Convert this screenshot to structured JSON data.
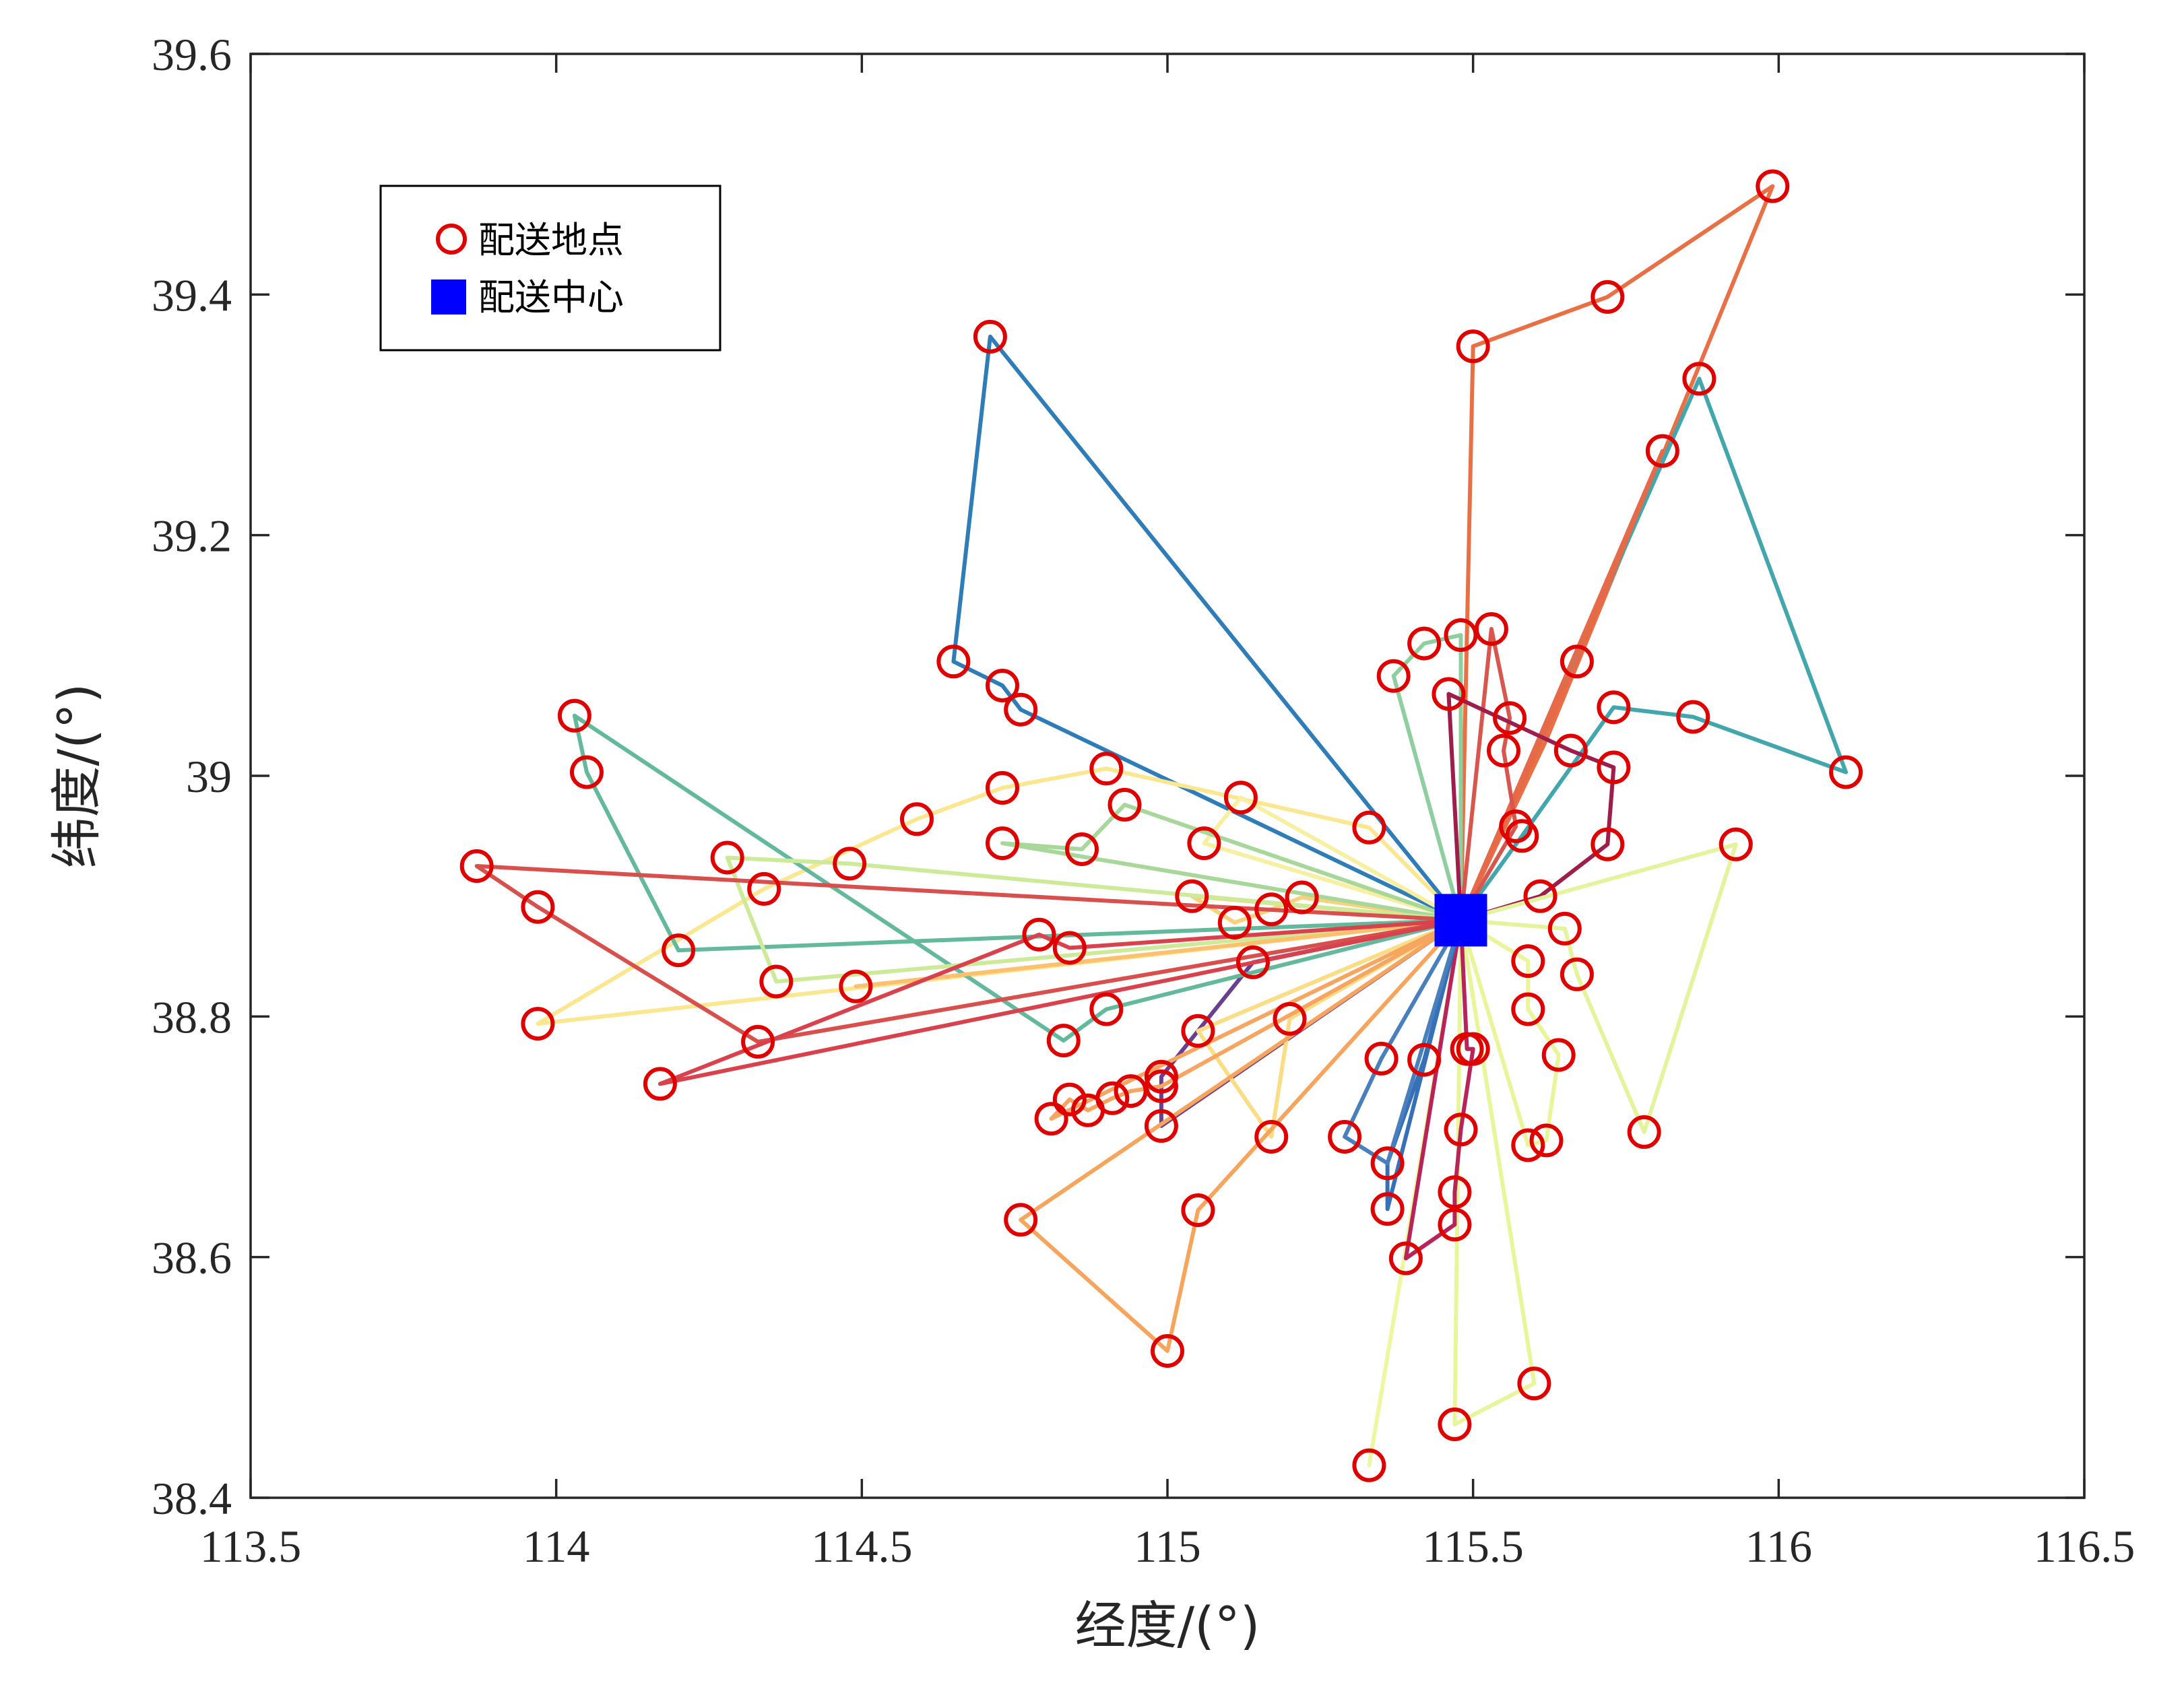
{
  "chart_data": {
    "type": "scatter",
    "xlabel": "经度/(°)",
    "ylabel": "纬度/(°)",
    "xlim": [
      113.5,
      116.5
    ],
    "ylim": [
      38.4,
      39.6
    ],
    "xticks": [
      "113.5",
      "114",
      "114.5",
      "115",
      "115.5",
      "116",
      "116.5"
    ],
    "yticks": [
      "38.4",
      "38.6",
      "38.8",
      "39",
      "39.2",
      "39.4",
      "39.6"
    ],
    "grid": false,
    "legend": {
      "position": "top-left",
      "entries": [
        {
          "label": "配送地点",
          "marker": "circle",
          "color": "#e00000"
        },
        {
          "label": "配送中心",
          "marker": "square",
          "color": "#0000ff"
        }
      ]
    },
    "center": {
      "x": 115.48,
      "y": 38.88,
      "color": "#0000ff"
    },
    "points": [
      [
        114.71,
        39.365
      ],
      [
        114.65,
        39.095
      ],
      [
        114.73,
        39.075
      ],
      [
        114.76,
        39.055
      ],
      [
        115.5,
        39.357
      ],
      [
        115.72,
        39.398
      ],
      [
        115.99,
        39.49
      ],
      [
        115.87,
        39.33
      ],
      [
        115.81,
        39.27
      ],
      [
        116.11,
        39.003
      ],
      [
        115.86,
        39.049
      ],
      [
        115.73,
        39.057
      ],
      [
        115.67,
        39.095
      ],
      [
        115.53,
        39.122
      ],
      [
        115.48,
        39.117
      ],
      [
        115.42,
        39.11
      ],
      [
        115.37,
        39.083
      ],
      [
        115.46,
        39.068
      ],
      [
        115.56,
        39.048
      ],
      [
        115.55,
        39.021
      ],
      [
        115.66,
        39.021
      ],
      [
        115.73,
        39.007
      ],
      [
        115.57,
        38.958
      ],
      [
        115.58,
        38.95
      ],
      [
        115.72,
        38.943
      ],
      [
        115.93,
        38.943
      ],
      [
        115.61,
        38.9
      ],
      [
        115.65,
        38.873
      ],
      [
        115.67,
        38.835
      ],
      [
        115.59,
        38.846
      ],
      [
        115.59,
        38.806
      ],
      [
        115.64,
        38.768
      ],
      [
        115.49,
        38.773
      ],
      [
        115.5,
        38.773
      ],
      [
        115.78,
        38.704
      ],
      [
        115.59,
        38.693
      ],
      [
        115.62,
        38.697
      ],
      [
        115.48,
        38.706
      ],
      [
        115.35,
        38.765
      ],
      [
        115.42,
        38.764
      ],
      [
        115.29,
        38.7
      ],
      [
        115.36,
        38.678
      ],
      [
        115.36,
        38.64
      ],
      [
        115.47,
        38.654
      ],
      [
        115.47,
        38.627
      ],
      [
        115.39,
        38.599
      ],
      [
        115.6,
        38.495
      ],
      [
        115.47,
        38.461
      ],
      [
        115.33,
        38.427
      ],
      [
        115.33,
        38.957
      ],
      [
        115.22,
        38.899
      ],
      [
        115.17,
        38.889
      ],
      [
        115.12,
        38.982
      ],
      [
        115.11,
        38.878
      ],
      [
        115.04,
        38.9
      ],
      [
        115.06,
        38.944
      ],
      [
        115.14,
        38.845
      ],
      [
        115.2,
        38.798
      ],
      [
        115.05,
        38.788
      ],
      [
        115.17,
        38.7
      ],
      [
        115.05,
        38.639
      ],
      [
        115.0,
        38.522
      ],
      [
        114.76,
        38.631
      ],
      [
        114.99,
        38.75
      ],
      [
        114.99,
        38.742
      ],
      [
        114.99,
        38.709
      ],
      [
        114.94,
        38.738
      ],
      [
        114.91,
        38.732
      ],
      [
        114.87,
        38.722
      ],
      [
        114.84,
        38.731
      ],
      [
        114.81,
        38.715
      ],
      [
        114.83,
        38.78
      ],
      [
        114.9,
        38.806
      ],
      [
        114.9,
        39.006
      ],
      [
        114.93,
        38.976
      ],
      [
        114.86,
        38.939
      ],
      [
        114.73,
        38.944
      ],
      [
        114.73,
        38.99
      ],
      [
        114.59,
        38.964
      ],
      [
        114.48,
        38.927
      ],
      [
        114.49,
        38.825
      ],
      [
        114.36,
        38.829
      ],
      [
        114.34,
        38.906
      ],
      [
        114.28,
        38.932
      ],
      [
        114.2,
        38.855
      ],
      [
        114.05,
        39.003
      ],
      [
        114.03,
        39.05
      ],
      [
        113.87,
        38.925
      ],
      [
        113.97,
        38.891
      ],
      [
        113.97,
        38.794
      ],
      [
        114.33,
        38.779
      ],
      [
        114.17,
        38.744
      ],
      [
        114.79,
        38.868
      ],
      [
        114.84,
        38.857
      ]
    ],
    "routes": [
      {
        "color": "#2e7db8",
        "path": [
          [
            115.48,
            38.88
          ],
          [
            114.71,
            39.365
          ],
          [
            114.65,
            39.095
          ],
          [
            114.73,
            39.075
          ],
          [
            114.76,
            39.055
          ],
          [
            115.48,
            38.88
          ]
        ]
      },
      {
        "color": "#e96f45",
        "path": [
          [
            115.48,
            38.88
          ],
          [
            115.5,
            39.357
          ],
          [
            115.72,
            39.398
          ],
          [
            115.99,
            39.49
          ],
          [
            115.62,
            39.03
          ],
          [
            115.48,
            38.88
          ]
        ]
      },
      {
        "color": "#42a6ad",
        "path": [
          [
            115.48,
            38.88
          ],
          [
            115.87,
            39.33
          ],
          [
            116.11,
            39.003
          ],
          [
            115.86,
            39.049
          ],
          [
            115.73,
            39.057
          ],
          [
            115.58,
            38.95
          ],
          [
            115.48,
            38.88
          ]
        ]
      },
      {
        "color": "#e66a48",
        "path": [
          [
            115.48,
            38.88
          ],
          [
            115.81,
            39.27
          ],
          [
            115.67,
            39.095
          ],
          [
            115.48,
            38.88
          ]
        ]
      },
      {
        "color": "#8fce9f",
        "path": [
          [
            115.48,
            38.88
          ],
          [
            115.37,
            39.083
          ],
          [
            115.42,
            39.11
          ],
          [
            115.48,
            39.117
          ],
          [
            115.48,
            38.88
          ]
        ]
      },
      {
        "color": "#d9564f",
        "path": [
          [
            115.48,
            38.88
          ],
          [
            115.53,
            39.122
          ],
          [
            115.56,
            39.048
          ],
          [
            115.55,
            39.021
          ],
          [
            115.57,
            38.958
          ],
          [
            115.48,
            38.88
          ]
        ]
      },
      {
        "color": "#9e1d4b",
        "path": [
          [
            115.48,
            38.88
          ],
          [
            115.46,
            39.068
          ],
          [
            115.66,
            39.021
          ],
          [
            115.73,
            39.007
          ],
          [
            115.72,
            38.943
          ],
          [
            115.61,
            38.9
          ],
          [
            115.48,
            38.88
          ]
        ]
      },
      {
        "color": "#e4f49c",
        "path": [
          [
            115.48,
            38.88
          ],
          [
            115.93,
            38.943
          ],
          [
            115.78,
            38.704
          ],
          [
            115.67,
            38.835
          ],
          [
            115.65,
            38.873
          ],
          [
            115.48,
            38.88
          ]
        ]
      },
      {
        "color": "#eaf59a",
        "path": [
          [
            115.48,
            38.88
          ],
          [
            115.59,
            38.846
          ],
          [
            115.59,
            38.806
          ],
          [
            115.64,
            38.768
          ],
          [
            115.62,
            38.697
          ],
          [
            115.59,
            38.693
          ],
          [
            115.48,
            38.88
          ]
        ]
      },
      {
        "color": "#e8f69a",
        "path": [
          [
            115.48,
            38.88
          ],
          [
            115.6,
            38.495
          ],
          [
            115.47,
            38.461
          ],
          [
            115.48,
            38.88
          ]
        ]
      },
      {
        "color": "#eef7a0",
        "path": [
          [
            115.48,
            38.88
          ],
          [
            115.33,
            38.427
          ],
          [
            115.48,
            38.88
          ]
        ]
      },
      {
        "color": "#b8235a",
        "path": [
          [
            115.48,
            38.88
          ],
          [
            115.49,
            38.773
          ],
          [
            115.5,
            38.773
          ],
          [
            115.48,
            38.706
          ],
          [
            115.47,
            38.654
          ],
          [
            115.47,
            38.627
          ],
          [
            115.39,
            38.599
          ],
          [
            115.48,
            38.88
          ]
        ]
      },
      {
        "color": "#3670b7",
        "path": [
          [
            115.48,
            38.88
          ],
          [
            115.42,
            38.764
          ],
          [
            115.36,
            38.678
          ],
          [
            115.36,
            38.64
          ],
          [
            115.48,
            38.88
          ]
        ]
      },
      {
        "color": "#4a7fbe",
        "path": [
          [
            115.48,
            38.88
          ],
          [
            115.35,
            38.765
          ],
          [
            115.29,
            38.7
          ],
          [
            115.36,
            38.678
          ],
          [
            115.48,
            38.88
          ]
        ]
      },
      {
        "color": "#fbe790",
        "path": [
          [
            115.48,
            38.88
          ],
          [
            115.33,
            38.957
          ],
          [
            114.9,
            39.006
          ],
          [
            114.73,
            38.99
          ],
          [
            114.59,
            38.964
          ],
          [
            114.34,
            38.906
          ],
          [
            113.97,
            38.794
          ],
          [
            115.48,
            38.88
          ]
        ]
      },
      {
        "color": "#f6f0a0",
        "path": [
          [
            115.48,
            38.88
          ],
          [
            115.12,
            38.982
          ],
          [
            115.06,
            38.944
          ],
          [
            115.48,
            38.88
          ]
        ]
      },
      {
        "color": "#f9d07c",
        "path": [
          [
            115.48,
            38.88
          ],
          [
            115.22,
            38.899
          ],
          [
            115.17,
            38.889
          ],
          [
            115.11,
            38.878
          ],
          [
            115.04,
            38.9
          ],
          [
            115.48,
            38.88
          ]
        ]
      },
      {
        "color": "#6b3f8f",
        "path": [
          [
            115.48,
            38.88
          ],
          [
            115.14,
            38.845
          ],
          [
            114.99,
            38.75
          ],
          [
            114.99,
            38.709
          ],
          [
            115.48,
            38.88
          ]
        ]
      },
      {
        "color": "#fbdd85",
        "path": [
          [
            115.48,
            38.88
          ],
          [
            115.2,
            38.798
          ],
          [
            115.17,
            38.7
          ],
          [
            115.05,
            38.788
          ],
          [
            115.48,
            38.88
          ]
        ]
      },
      {
        "color": "#f7a45c",
        "path": [
          [
            115.48,
            38.88
          ],
          [
            115.05,
            38.639
          ],
          [
            115.0,
            38.522
          ],
          [
            114.76,
            38.631
          ],
          [
            115.48,
            38.88
          ]
        ]
      },
      {
        "color": "#f6a660",
        "path": [
          [
            115.48,
            38.88
          ],
          [
            114.99,
            38.742
          ],
          [
            114.94,
            38.738
          ],
          [
            114.91,
            38.732
          ],
          [
            114.87,
            38.722
          ],
          [
            114.84,
            38.731
          ],
          [
            114.81,
            38.715
          ],
          [
            115.48,
            38.88
          ]
        ]
      },
      {
        "color": "#62b99b",
        "path": [
          [
            115.48,
            38.88
          ],
          [
            114.9,
            38.806
          ],
          [
            114.83,
            38.78
          ],
          [
            114.03,
            39.05
          ],
          [
            114.05,
            39.003
          ],
          [
            114.2,
            38.855
          ],
          [
            115.48,
            38.88
          ]
        ]
      },
      {
        "color": "#a8d79a",
        "path": [
          [
            115.48,
            38.88
          ],
          [
            114.93,
            38.976
          ],
          [
            114.86,
            38.939
          ],
          [
            114.73,
            38.944
          ],
          [
            115.48,
            38.88
          ]
        ]
      },
      {
        "color": "#cdea99",
        "path": [
          [
            115.48,
            38.88
          ],
          [
            114.48,
            38.927
          ],
          [
            114.28,
            38.932
          ],
          [
            114.36,
            38.829
          ],
          [
            115.48,
            38.88
          ]
        ]
      },
      {
        "color": "#fcc06f",
        "path": [
          [
            115.48,
            38.88
          ],
          [
            114.49,
            38.825
          ],
          [
            115.48,
            38.88
          ]
        ]
      },
      {
        "color": "#d94f4c",
        "path": [
          [
            115.48,
            38.88
          ],
          [
            113.87,
            38.925
          ],
          [
            113.97,
            38.891
          ],
          [
            114.33,
            38.779
          ],
          [
            115.48,
            38.88
          ]
        ]
      },
      {
        "color": "#d9424c",
        "path": [
          [
            115.48,
            38.88
          ],
          [
            114.84,
            38.857
          ],
          [
            114.79,
            38.868
          ],
          [
            114.17,
            38.744
          ],
          [
            115.48,
            38.88
          ]
        ]
      }
    ]
  }
}
